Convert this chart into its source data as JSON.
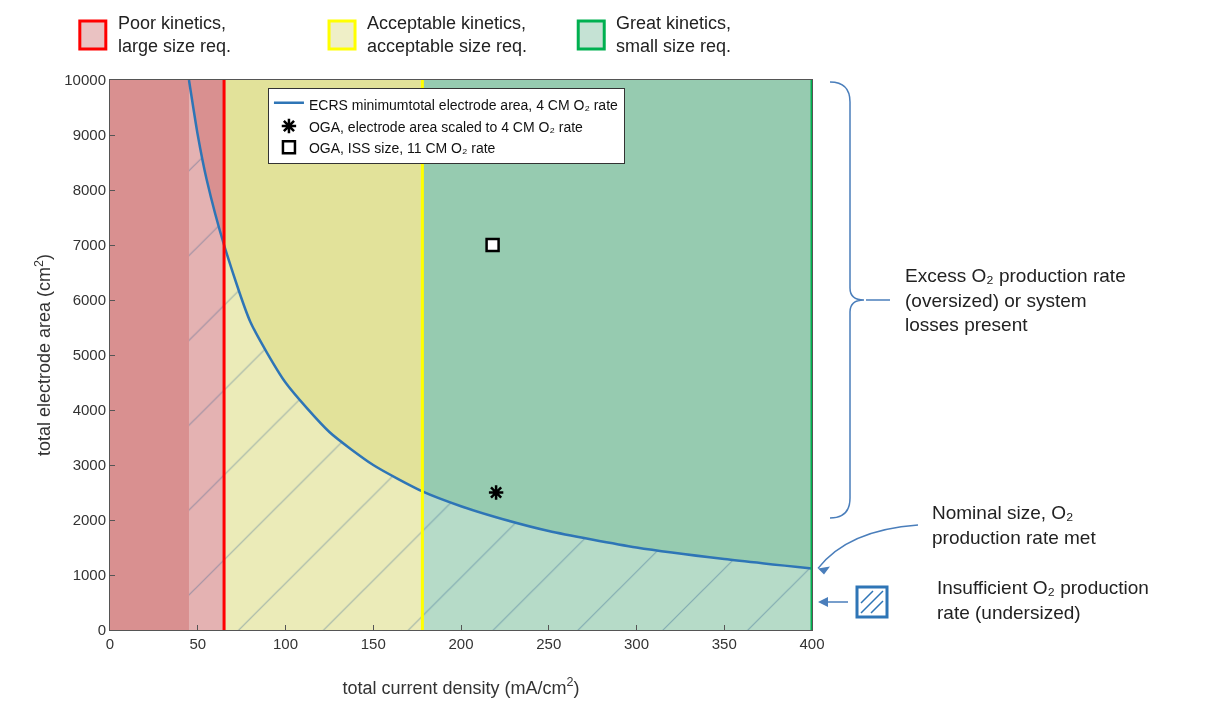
{
  "chart_data": {
    "type": "area",
    "xlabel": "total current density (mA/cm$^{2}$)",
    "ylabel": "total electrode area (cm$^{2}$)",
    "xlim": [
      0,
      400
    ],
    "xticks": [
      0,
      50,
      100,
      150,
      200,
      250,
      300,
      350,
      400
    ],
    "ylim": [
      0,
      10000
    ],
    "yticks": [
      0,
      1000,
      2000,
      3000,
      4000,
      5000,
      6000,
      7000,
      8000,
      9000,
      10000
    ],
    "grid": false,
    "legend": "top right",
    "series": [
      {
        "name": "ECRS minimumtotal electrode area, 4 CM O₂ rate",
        "color": "#2e75b6",
        "line_style": "solid",
        "marker": "none",
        "x": [
          45,
          50,
          55,
          65,
          80,
          100,
          125,
          150,
          178,
          200,
          220,
          250,
          300,
          350,
          400
        ],
        "values": [
          10000,
          9000,
          8200,
          7000,
          5600,
          4500,
          3600,
          3000,
          2520,
          2250,
          2050,
          1800,
          1500,
          1290,
          1120
        ]
      },
      {
        "name": "OGA, electrode area scaled to 4 CM O₂ rate",
        "type": "scatter",
        "color": "#000000",
        "marker": "cross",
        "x": [
          220
        ],
        "values": [
          2500
        ]
      },
      {
        "name": "OGA, ISS size, 11 CM O₂ rate",
        "type": "scatter",
        "color": "#000000",
        "marker": "square",
        "x": [
          218
        ],
        "values": [
          7000
        ]
      }
    ],
    "bands": [
      {
        "axis": "x",
        "from": 0,
        "to": 65,
        "label": "Poor kinetics,\nlarge size req.",
        "color": "#d99090"
      },
      {
        "axis": "x",
        "from": 65,
        "to": 178,
        "label": "Acceptable kinetics,\nacceptable size req.",
        "color": "#e2e29a"
      },
      {
        "axis": "x",
        "from": 178,
        "to": 400,
        "label": "Great kinetics,\nsmall size req.",
        "color": "#96cbb0"
      }
    ],
    "ref_lines": [
      {
        "axis": "x",
        "value": 65,
        "color": "#ff0000",
        "line_style": "solid"
      },
      {
        "axis": "x",
        "value": 178,
        "color": "#ffff00",
        "line_style": "solid"
      },
      {
        "axis": "x",
        "value": 400,
        "color": "#00b050",
        "line_style": "solid"
      }
    ],
    "annotations": [
      "Excess O₂ production rate\n(oversized) or system\nlosses present",
      {
        "text": "Nominal size, O₂\nproduction rate met",
        "x": 400,
        "y": 1120
      },
      "Insufficient O₂ production\nrate (undersized)"
    ]
  }
}
